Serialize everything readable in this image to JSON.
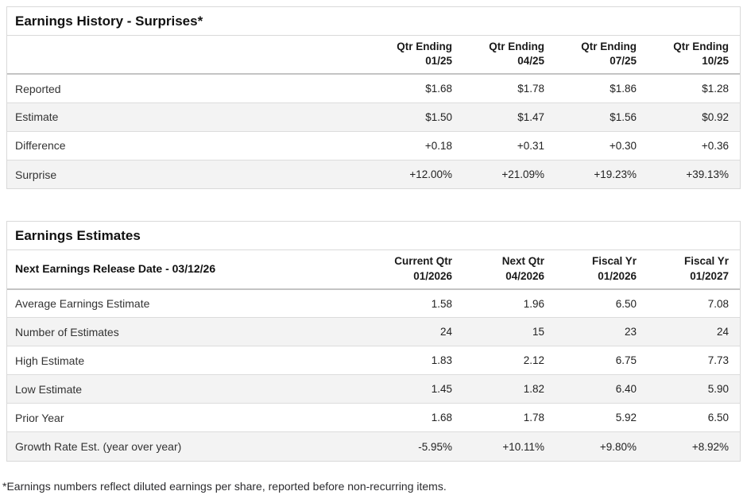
{
  "colors": {
    "positive": "#2c9678",
    "negative": "#c9414d"
  },
  "earnings_history": {
    "title": "Earnings History - Surprises*",
    "columns": [
      {
        "line1": "Qtr Ending",
        "line2": "01/25"
      },
      {
        "line1": "Qtr Ending",
        "line2": "04/25"
      },
      {
        "line1": "Qtr Ending",
        "line2": "07/25"
      },
      {
        "line1": "Qtr Ending",
        "line2": "10/25"
      }
    ],
    "rows": [
      {
        "label": "Reported",
        "values": [
          "$1.68",
          "$1.78",
          "$1.86",
          "$1.28"
        ]
      },
      {
        "label": "Estimate",
        "values": [
          "$1.50",
          "$1.47",
          "$1.56",
          "$0.92"
        ]
      },
      {
        "label": "Difference",
        "values": [
          "+0.18",
          "+0.31",
          "+0.30",
          "+0.36"
        ]
      },
      {
        "label": "Surprise",
        "values": [
          "+12.00%",
          "+21.09%",
          "+19.23%",
          "+39.13%"
        ]
      }
    ]
  },
  "earnings_estimates": {
    "title": "Earnings Estimates",
    "release_date_label": "Next Earnings Release Date - 03/12/26",
    "columns": [
      {
        "line1": "Current Qtr",
        "line2": "01/2026"
      },
      {
        "line1": "Next Qtr",
        "line2": "04/2026"
      },
      {
        "line1": "Fiscal Yr",
        "line2": "01/2026"
      },
      {
        "line1": "Fiscal Yr",
        "line2": "01/2027"
      }
    ],
    "rows": [
      {
        "label": "Average Earnings Estimate",
        "values": [
          "1.58",
          "1.96",
          "6.50",
          "7.08"
        ]
      },
      {
        "label": "Number of Estimates",
        "values": [
          "24",
          "15",
          "23",
          "24"
        ]
      },
      {
        "label": "High Estimate",
        "values": [
          "1.83",
          "2.12",
          "6.75",
          "7.73"
        ]
      },
      {
        "label": "Low Estimate",
        "values": [
          "1.45",
          "1.82",
          "6.40",
          "5.90"
        ]
      },
      {
        "label": "Prior Year",
        "values": [
          "1.68",
          "1.78",
          "5.92",
          "6.50"
        ]
      },
      {
        "label": "Growth Rate Est. (year over year)",
        "values": [
          "-5.95%",
          "+10.11%",
          "+9.80%",
          "+8.92%"
        ]
      }
    ]
  },
  "footnote": "*Earnings numbers reflect diluted earnings per share, reported before non-recurring items."
}
